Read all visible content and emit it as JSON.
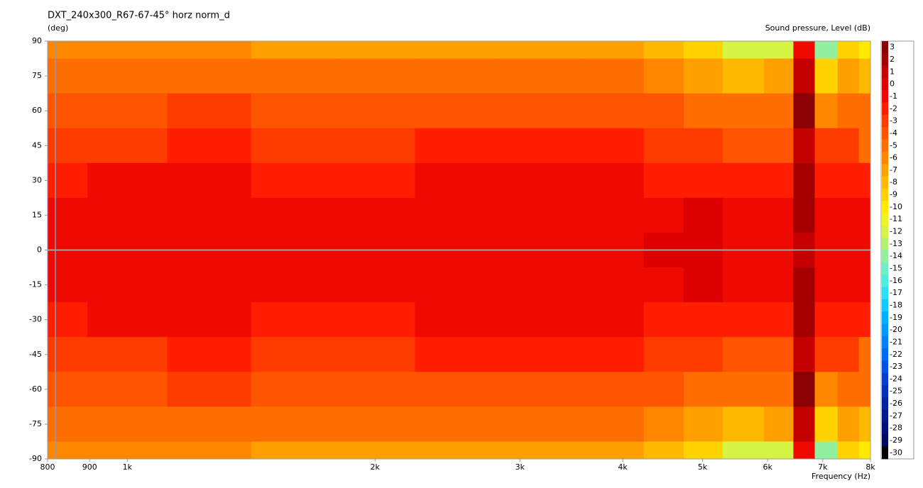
{
  "chart_data": {
    "type": "contour",
    "title": "DXT_240x300_R67-67-45° horz norm_d",
    "y_label": "(deg)",
    "x_label": "Frequency  (Hz)",
    "colorbar_label": "Sound pressure, Level  (dB)",
    "x_scale": "log",
    "xlim": [
      800,
      8000
    ],
    "xticks": [
      800,
      900,
      {
        "value": 1000,
        "label": "1k"
      },
      {
        "value": 2000,
        "label": "2k"
      },
      {
        "value": 3000,
        "label": "3k"
      },
      {
        "value": 4000,
        "label": "4k"
      },
      {
        "value": 5000,
        "label": "5k"
      },
      {
        "value": 6000,
        "label": "6k"
      },
      {
        "value": 7000,
        "label": "7k"
      },
      {
        "value": 8000,
        "label": "8k"
      }
    ],
    "ylim": [
      -90,
      90
    ],
    "yticks": [
      90,
      75,
      60,
      45,
      30,
      15,
      0,
      -15,
      -30,
      -45,
      -60,
      -75,
      -90
    ],
    "x": [
      800,
      1000,
      1250,
      1600,
      2000,
      2500,
      3150,
      4000,
      4500,
      5000,
      5600,
      6300,
      6600,
      7100,
      7500,
      8000
    ],
    "y": [
      90,
      75,
      60,
      45,
      30,
      15,
      0,
      -15,
      -30,
      -45,
      -60,
      -75,
      -90
    ],
    "z": [
      [
        -6,
        -6,
        -6,
        -6.5,
        -6.5,
        -6.5,
        -6.5,
        -7,
        -8,
        -9,
        -12,
        -12,
        -1,
        -14,
        -9,
        -10
      ],
      [
        -5,
        -5,
        -4.5,
        -5,
        -5,
        -5,
        -5,
        -5,
        -6,
        -7,
        -8,
        -7,
        1,
        -9,
        -7,
        -8
      ],
      [
        -4,
        -3.5,
        -3,
        -3.5,
        -4,
        -3.5,
        -3.5,
        -3.5,
        -4,
        -4.5,
        -5,
        -5,
        3,
        -6,
        -4.5,
        -4.5
      ],
      [
        -3,
        -2.5,
        -2,
        -2.5,
        -2.5,
        -2,
        -2,
        -2,
        -2.5,
        -3,
        -4,
        -3.5,
        1,
        -3,
        -3,
        -5
      ],
      [
        -1.5,
        -1,
        -1,
        -1.5,
        -1.5,
        -1,
        -1,
        -1,
        -1.5,
        -1.5,
        -2,
        -2,
        2,
        -2,
        -2,
        -2
      ],
      [
        -1,
        -1,
        -1,
        -1,
        -1,
        -1,
        -1,
        -1,
        -1,
        0,
        -1,
        -1,
        2,
        -1,
        -1,
        -0.5
      ],
      [
        -1,
        -1,
        -1,
        -1,
        -1,
        -1,
        -1,
        -0.5,
        0,
        0,
        -1,
        -0.5,
        1,
        -0.5,
        -1,
        -0.5
      ],
      [
        -1,
        -1,
        -1,
        -1,
        -1,
        -1,
        -1,
        -1,
        -1,
        0,
        -1,
        -1,
        2,
        -1,
        -1,
        -0.5
      ],
      [
        -1.5,
        -1,
        -1,
        -1.5,
        -1.5,
        -1,
        -1,
        -1,
        -1.5,
        -1.5,
        -2,
        -2,
        2,
        -2,
        -2,
        -2
      ],
      [
        -3,
        -2.5,
        -2,
        -2.5,
        -2.5,
        -2,
        -2,
        -2,
        -2.5,
        -3,
        -4,
        -3.5,
        1,
        -3,
        -3,
        -5
      ],
      [
        -4,
        -3.5,
        -3,
        -3.5,
        -4,
        -3.5,
        -3.5,
        -3.5,
        -4,
        -4.5,
        -5,
        -5,
        3,
        -6,
        -4.5,
        -4.5
      ],
      [
        -5,
        -5,
        -4.5,
        -5,
        -5,
        -5,
        -5,
        -5,
        -6,
        -7,
        -8,
        -7,
        1,
        -9,
        -7,
        -8
      ],
      [
        -6,
        -6,
        -6,
        -6.5,
        -6.5,
        -6.5,
        -6.5,
        -7,
        -8,
        -9,
        -12,
        -12,
        -1,
        -14,
        -9,
        -10
      ]
    ],
    "colorbar": {
      "levels": [
        3,
        2,
        1,
        0,
        -1,
        -2,
        -3,
        -4,
        -5,
        -6,
        -7,
        -8,
        -9,
        -10,
        -11,
        -12,
        -13,
        -14,
        -15,
        -16,
        -17,
        -18,
        -19,
        -20,
        -21,
        -22,
        -23,
        -24,
        -25,
        -26,
        -27,
        -28,
        -29,
        -30
      ],
      "colors": [
        "#8b0000",
        "#a50000",
        "#c40000",
        "#dd0000",
        "#ee0a00",
        "#ff1e00",
        "#ff3c00",
        "#ff5500",
        "#ff6e00",
        "#ff8700",
        "#ffa000",
        "#ffb900",
        "#ffd200",
        "#ffea00",
        "#f2f422",
        "#d6f443",
        "#b4f170",
        "#92efa0",
        "#70efc4",
        "#4eeedf",
        "#2fdef2",
        "#12c8ff",
        "#00b0ff",
        "#0098ff",
        "#0080ff",
        "#0068f6",
        "#0052e6",
        "#003ed2",
        "#002ebc",
        "#0020a6",
        "#00168e",
        "#000e76",
        "#00065c",
        "#000000"
      ]
    }
  }
}
